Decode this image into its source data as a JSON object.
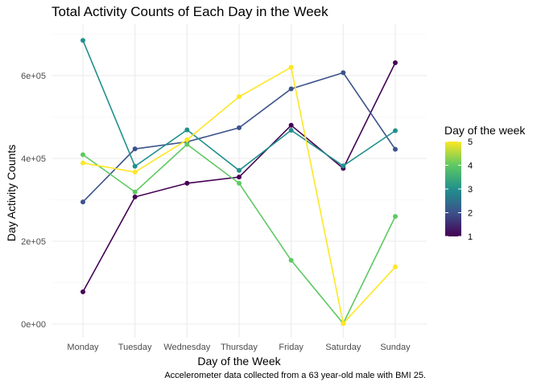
{
  "chart_data": {
    "type": "line",
    "title": "Total Activity Counts of Each Day in the Week",
    "xlabel": "Day of the Week",
    "ylabel": "Day Activity Counts",
    "caption": "Accelerometer data collected from a 63 year-old male with BMI 25.",
    "categories": [
      "Monday",
      "Tuesday",
      "Wednesday",
      "Thursday",
      "Friday",
      "Saturday",
      "Sunday"
    ],
    "ylim": [
      0,
      700000
    ],
    "yticks": [
      0,
      200000,
      400000,
      600000
    ],
    "ytick_labels": [
      "0e+00",
      "2e+05",
      "4e+05",
      "6e+05"
    ],
    "grid": true,
    "legend": {
      "title": "Day of the week",
      "position": "right",
      "type": "colorbar",
      "range": [
        1,
        5
      ],
      "ticks": [
        1,
        2,
        3,
        4,
        5
      ],
      "tick_labels": [
        "1",
        "2",
        "3",
        "4",
        "5"
      ]
    },
    "series": [
      {
        "week": 1,
        "color": "#440154",
        "values": [
          78000,
          307000,
          340000,
          355000,
          480000,
          376000,
          631000
        ]
      },
      {
        "week": 2,
        "color": "#3b528b",
        "values": [
          295000,
          423000,
          440000,
          474000,
          568000,
          607000,
          422000
        ]
      },
      {
        "week": 3,
        "color": "#21908c",
        "values": [
          685000,
          381000,
          469000,
          371000,
          468000,
          382000,
          467000
        ]
      },
      {
        "week": 4,
        "color": "#5ec962",
        "values": [
          409000,
          319000,
          434000,
          340000,
          154000,
          1440,
          260000
        ]
      },
      {
        "week": 5,
        "color": "#fde725",
        "values": [
          389000,
          367000,
          445000,
          549000,
          620000,
          1440,
          138000
        ]
      }
    ]
  }
}
